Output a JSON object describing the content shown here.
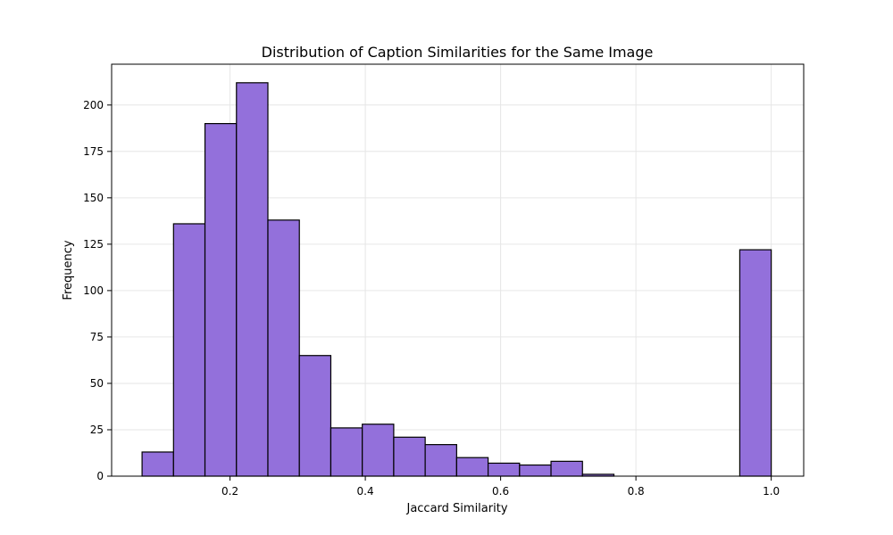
{
  "chart_data": {
    "type": "bar",
    "title": "Distribution of Caption Similarities for the Same Image",
    "xlabel": "Jaccard Similarity",
    "ylabel": "Frequency",
    "xlim": [
      0.025,
      1.048
    ],
    "ylim": [
      0,
      222
    ],
    "grid": true,
    "bar_color": "#9370DB",
    "edge_color": "#000000",
    "x_ticks": [
      0.2,
      0.4,
      0.6,
      0.8,
      1.0
    ],
    "x_tick_labels": [
      "0.2",
      "0.4",
      "0.6",
      "0.8",
      "1.0"
    ],
    "y_ticks": [
      0,
      25,
      50,
      75,
      100,
      125,
      150,
      175,
      200
    ],
    "y_tick_labels": [
      "0",
      "25",
      "50",
      "75",
      "100",
      "125",
      "150",
      "175",
      "200"
    ],
    "bins": [
      {
        "start": 0.07,
        "end": 0.1165,
        "value": 13
      },
      {
        "start": 0.1165,
        "end": 0.163,
        "value": 136
      },
      {
        "start": 0.163,
        "end": 0.2095,
        "value": 190
      },
      {
        "start": 0.2095,
        "end": 0.256,
        "value": 212
      },
      {
        "start": 0.256,
        "end": 0.3025,
        "value": 138
      },
      {
        "start": 0.3025,
        "end": 0.349,
        "value": 65
      },
      {
        "start": 0.349,
        "end": 0.3955,
        "value": 26
      },
      {
        "start": 0.3955,
        "end": 0.442,
        "value": 28
      },
      {
        "start": 0.442,
        "end": 0.4885,
        "value": 21
      },
      {
        "start": 0.4885,
        "end": 0.535,
        "value": 17
      },
      {
        "start": 0.535,
        "end": 0.5815,
        "value": 10
      },
      {
        "start": 0.5815,
        "end": 0.628,
        "value": 7
      },
      {
        "start": 0.628,
        "end": 0.6745,
        "value": 6
      },
      {
        "start": 0.6745,
        "end": 0.721,
        "value": 8
      },
      {
        "start": 0.721,
        "end": 0.7675,
        "value": 1
      },
      {
        "start": 0.7675,
        "end": 0.814,
        "value": 0
      },
      {
        "start": 0.814,
        "end": 0.8605,
        "value": 0
      },
      {
        "start": 0.8605,
        "end": 0.907,
        "value": 0
      },
      {
        "start": 0.907,
        "end": 0.9535,
        "value": 0
      },
      {
        "start": 0.9535,
        "end": 1.0,
        "value": 122
      }
    ]
  }
}
